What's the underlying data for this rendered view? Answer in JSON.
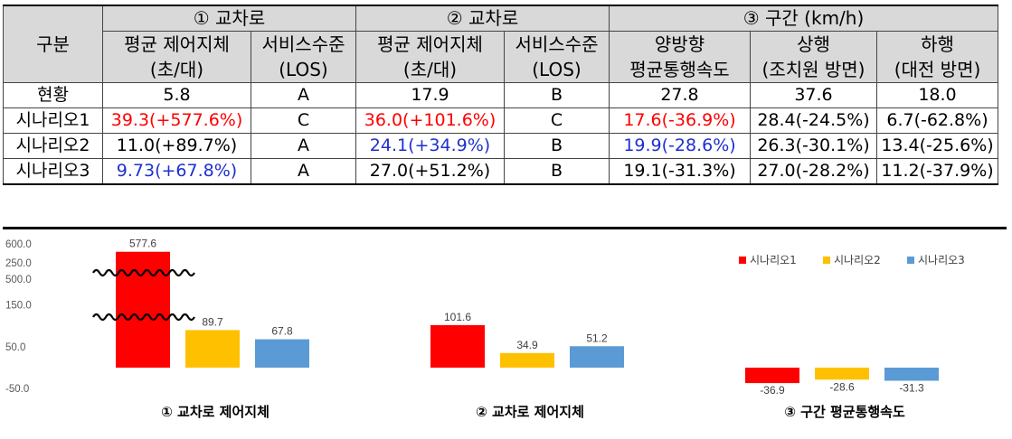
{
  "table": {
    "header_group": "구분",
    "groups": [
      "① 교차로",
      "② 교차로",
      "③ 구간 (km/h)"
    ],
    "subheaders": [
      [
        "평균 제어지체",
        "(초/대)"
      ],
      [
        "서비스수준",
        "(LOS)"
      ],
      [
        "평균 제어지체",
        "(초/대)"
      ],
      [
        "서비스수준",
        "(LOS)"
      ],
      [
        "양방향",
        "평균통행속도"
      ],
      [
        "상행",
        "(조치원 방면)"
      ],
      [
        "하행",
        "(대전 방면)"
      ]
    ],
    "rows": [
      {
        "label": "현황",
        "cells": [
          {
            "text": "5.8",
            "color": ""
          },
          {
            "text": "A",
            "color": ""
          },
          {
            "text": "17.9",
            "color": ""
          },
          {
            "text": "B",
            "color": ""
          },
          {
            "text": "27.8",
            "color": ""
          },
          {
            "text": "37.6",
            "color": ""
          },
          {
            "text": "18.0",
            "color": ""
          }
        ]
      },
      {
        "label": "시나리오1",
        "cells": [
          {
            "text": "39.3(+577.6%)",
            "color": "red"
          },
          {
            "text": "C",
            "color": ""
          },
          {
            "text": "36.0(+101.6%)",
            "color": "red"
          },
          {
            "text": "C",
            "color": ""
          },
          {
            "text": "17.6(-36.9%)",
            "color": "red"
          },
          {
            "text": "28.4(-24.5%)",
            "color": ""
          },
          {
            "text": "6.7(-62.8%)",
            "color": ""
          }
        ]
      },
      {
        "label": "시나리오2",
        "cells": [
          {
            "text": "11.0(+89.7%)",
            "color": ""
          },
          {
            "text": "A",
            "color": ""
          },
          {
            "text": "24.1(+34.9%)",
            "color": "blue"
          },
          {
            "text": "B",
            "color": ""
          },
          {
            "text": "19.9(-28.6%)",
            "color": "blue"
          },
          {
            "text": "26.3(-30.1%)",
            "color": ""
          },
          {
            "text": "13.4(-25.6%)",
            "color": ""
          }
        ]
      },
      {
        "label": "시나리오3",
        "cells": [
          {
            "text": "9.73(+67.8%)",
            "color": "blue"
          },
          {
            "text": "A",
            "color": ""
          },
          {
            "text": "27.0(+51.2%)",
            "color": ""
          },
          {
            "text": "B",
            "color": ""
          },
          {
            "text": "19.1(-31.3%)",
            "color": ""
          },
          {
            "text": "27.0(-28.2%)",
            "color": ""
          },
          {
            "text": "11.2(-37.9%)",
            "color": ""
          }
        ]
      }
    ]
  },
  "chart_data": {
    "type": "bar",
    "categories": [
      "① 교차로 제어지체",
      "② 교차로 제어지체",
      "③ 구간 평균통행속도"
    ],
    "series": [
      {
        "name": "시나리오1",
        "color": "#ff0000",
        "values": [
          577.6,
          101.6,
          -36.9
        ]
      },
      {
        "name": "시나리오2",
        "color": "#ffc000",
        "values": [
          89.7,
          34.9,
          -28.6
        ]
      },
      {
        "name": "시나리오3",
        "color": "#5b9bd5",
        "values": [
          67.8,
          51.2,
          -31.3
        ]
      }
    ],
    "y_ticks": [
      "600.0",
      "500.0",
      "250.0",
      "150.0",
      "50.0",
      "-50.0"
    ],
    "broken_axis": true,
    "legend_position": "top-right"
  }
}
